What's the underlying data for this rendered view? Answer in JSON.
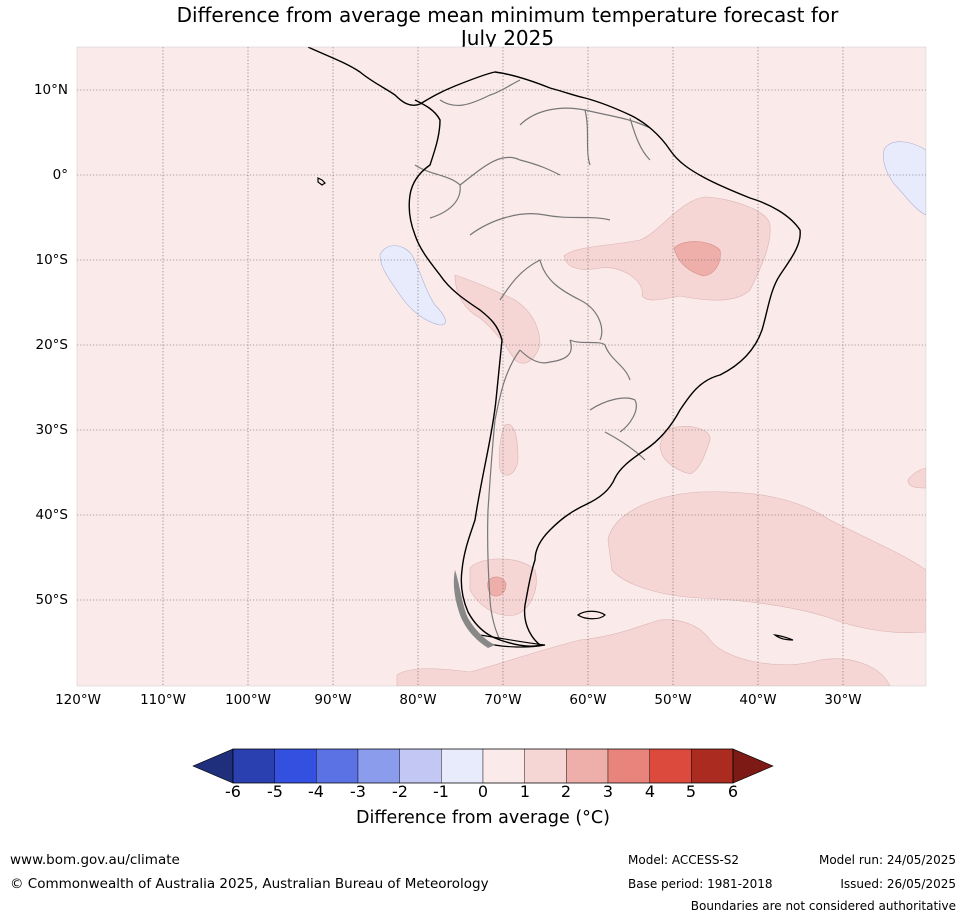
{
  "title_line1": "Difference from average mean minimum temperature forecast for",
  "title_line2": "July 2025",
  "map": {
    "region": "South America",
    "lat_labels": [
      "10°N",
      "0°",
      "10°S",
      "20°S",
      "30°S",
      "40°S",
      "50°S"
    ],
    "lon_labels": [
      "120°W",
      "110°W",
      "100°W",
      "90°W",
      "80°W",
      "70°W",
      "60°W",
      "50°W",
      "40°W",
      "30°W"
    ],
    "background_anomaly_band": "0 to 1",
    "gridlines": true
  },
  "colorbar": {
    "ticks": [
      "-6",
      "-5",
      "-4",
      "-3",
      "-2",
      "-1",
      "0",
      "1",
      "2",
      "3",
      "4",
      "5",
      "6"
    ],
    "colors": [
      "#2a3fb0",
      "#3350e0",
      "#5b72e5",
      "#8b9ced",
      "#c2c8f3",
      "#e8ebfb",
      "#fbeaea",
      "#f6d6d5",
      "#eeaea9",
      "#e9847d",
      "#dc4a3e",
      "#ac2b20"
    ],
    "low_extend_color": "#1f2f7c",
    "high_extend_color": "#7d1a16",
    "label": "Difference from average (°C)"
  },
  "footer": {
    "website": "www.bom.gov.au/climate",
    "copyright": "© Commonwealth of Australia 2025, Australian Bureau of Meteorology",
    "model": "Model: ACCESS-S2",
    "base_period": "Base period: 1981-2018",
    "model_run": "Model run: 24/05/2025",
    "issued": "Issued: 26/05/2025",
    "disclaimer": "Boundaries are not considered authoritative"
  }
}
